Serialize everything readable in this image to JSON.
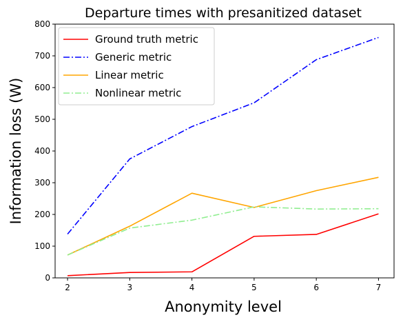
{
  "chart_data": {
    "type": "line",
    "title": "Departure times with presanitized dataset",
    "xlabel": "Anonymity level",
    "ylabel": "Information loss (W)",
    "x": [
      2,
      3,
      4,
      5,
      6,
      7
    ],
    "xlim": [
      1.8,
      7.25
    ],
    "ylim": [
      0,
      800
    ],
    "xticks": [
      2,
      3,
      4,
      5,
      6,
      7
    ],
    "yticks": [
      0,
      100,
      200,
      300,
      400,
      500,
      600,
      700,
      800
    ],
    "grid": false,
    "legend_position": "top-left",
    "series": [
      {
        "name": "Ground truth metric",
        "values": [
          7,
          17,
          19,
          131,
          137,
          202
        ],
        "color": "#ff0000",
        "line_style": "solid"
      },
      {
        "name": "Generic metric",
        "values": [
          138,
          375,
          477,
          552,
          688,
          758
        ],
        "color": "#0000ff",
        "line_style": "dashdot"
      },
      {
        "name": "Linear metric",
        "values": [
          72,
          163,
          267,
          222,
          275,
          317
        ],
        "color": "#ffa500",
        "line_style": "solid"
      },
      {
        "name": "Nonlinear metric",
        "values": [
          72,
          157,
          182,
          224,
          217,
          218
        ],
        "color": "#90ee90",
        "line_style": "dashdot"
      }
    ]
  }
}
